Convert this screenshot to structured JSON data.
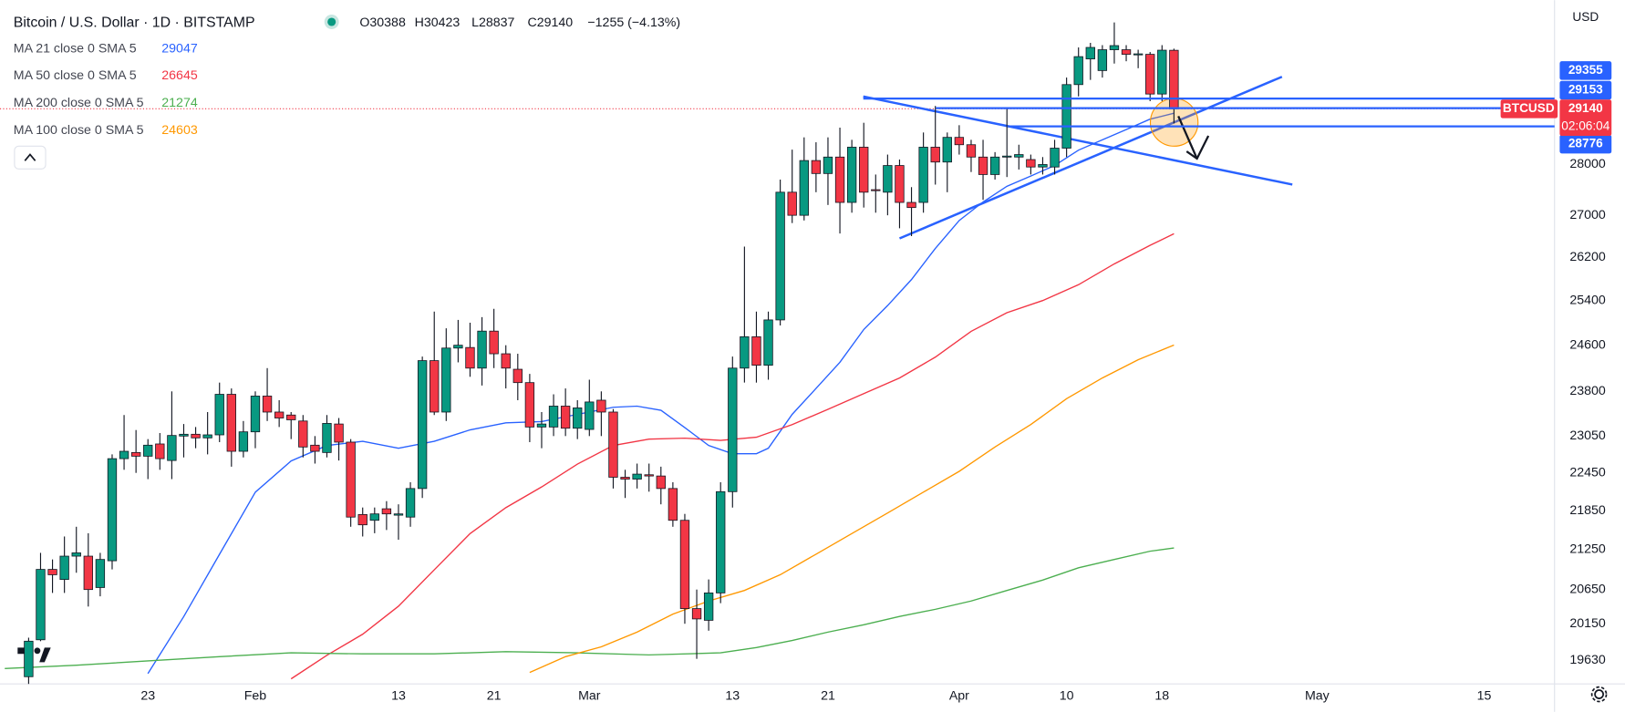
{
  "chart_data": {
    "type": "candlestick",
    "title": "Bitcoin / U.S. Dollar · 1D · BITSTAMP",
    "ohlc_labels": [
      "O30388",
      "H30423",
      "L28837",
      "C29140",
      "−1255 (−4.13%)"
    ],
    "currency": "USD",
    "up_color": "#089981",
    "down_color": "#f23645",
    "x": [
      13,
      14,
      15,
      16,
      17,
      18,
      19,
      20,
      21,
      22,
      23,
      24,
      25,
      26,
      27,
      28,
      29,
      30,
      31,
      32,
      33,
      34,
      35,
      36,
      37,
      38,
      39,
      40,
      41,
      42,
      43,
      44,
      45,
      46,
      47,
      48,
      49,
      50,
      51,
      52,
      53,
      54,
      55,
      56,
      57,
      58,
      59,
      60,
      61,
      62,
      63,
      64,
      65,
      66,
      67,
      68,
      69,
      70,
      71,
      72,
      73,
      74,
      75,
      76,
      77,
      78,
      79,
      80,
      81,
      82,
      83,
      84,
      85,
      86,
      87,
      88,
      89,
      90,
      91,
      92,
      93,
      94,
      95,
      96,
      97,
      98,
      99,
      100,
      101,
      102,
      103,
      104,
      105,
      106,
      107,
      108,
      109
    ],
    "open": [
      19400,
      19920,
      20950,
      20800,
      21150,
      21150,
      20680,
      21080,
      22680,
      22780,
      22720,
      22920,
      22650,
      23050,
      23080,
      23020,
      23070,
      23750,
      22800,
      23120,
      23720,
      23450,
      23400,
      23300,
      22900,
      22780,
      23250,
      22950,
      21790,
      21700,
      21880,
      21780,
      21750,
      22200,
      24330,
      23450,
      24550,
      24560,
      24200,
      24850,
      24450,
      24180,
      23950,
      23200,
      23200,
      23550,
      23180,
      23160,
      23650,
      23450,
      22380,
      22350,
      22420,
      22400,
      22200,
      21700,
      20370,
      20200,
      20600,
      22150,
      24200,
      24750,
      24250,
      25050,
      27450,
      27000,
      28080,
      27820,
      28150,
      27250,
      28350,
      27500,
      27450,
      27980,
      27250,
      27250,
      28350,
      28050,
      28550,
      28400,
      28150,
      27800,
      28150,
      28150,
      28100,
      27950,
      27950,
      28330,
      29650,
      30200,
      29950,
      30400,
      30400,
      30300,
      30300,
      29450,
      30388
    ],
    "high": [
      19950,
      21200,
      21100,
      21450,
      21600,
      21500,
      21200,
      22750,
      23400,
      23150,
      23000,
      23100,
      23800,
      23250,
      23200,
      23450,
      23950,
      23850,
      23300,
      23800,
      24200,
      23650,
      23450,
      23400,
      23050,
      23400,
      23350,
      23000,
      21900,
      21900,
      22000,
      21950,
      22300,
      24400,
      25200,
      24900,
      25050,
      25000,
      25100,
      25250,
      24600,
      24450,
      24100,
      23450,
      23750,
      23850,
      23650,
      24000,
      23800,
      23500,
      22500,
      22600,
      22600,
      22550,
      22300,
      21800,
      20650,
      20800,
      22300,
      24400,
      26400,
      25200,
      25200,
      27700,
      28300,
      28550,
      28450,
      28550,
      28750,
      28500,
      28850,
      27800,
      28200,
      28100,
      27550,
      28650,
      29200,
      28650,
      28800,
      28500,
      28500,
      28250,
      29150,
      28400,
      28200,
      28150,
      28500,
      29800,
      30450,
      30550,
      30500,
      31000,
      30500,
      30400,
      30350,
      30500,
      30423
    ],
    "low": [
      19300,
      19900,
      20600,
      20600,
      20900,
      20400,
      20550,
      20950,
      22500,
      22450,
      22350,
      22500,
      22350,
      22700,
      22850,
      22750,
      22950,
      22550,
      22700,
      22850,
      23300,
      23200,
      23000,
      22700,
      22600,
      22700,
      22650,
      21600,
      21450,
      21500,
      21550,
      21400,
      21600,
      22050,
      23400,
      23300,
      24300,
      24050,
      23900,
      24200,
      23850,
      23650,
      22950,
      22850,
      23050,
      23050,
      23000,
      23050,
      23050,
      22200,
      22050,
      22200,
      22150,
      21950,
      21600,
      20150,
      19650,
      20050,
      20450,
      21900,
      23950,
      23950,
      24000,
      24950,
      26850,
      26900,
      27450,
      27200,
      26650,
      27050,
      27150,
      27050,
      27000,
      26750,
      26600,
      27050,
      27600,
      27450,
      28200,
      27850,
      27300,
      27700,
      27750,
      27900,
      27800,
      27800,
      27800,
      28150,
      29400,
      29750,
      29800,
      30100,
      30150,
      30000,
      29300,
      29300,
      28837
    ],
    "close": [
      19900,
      20950,
      20870,
      21150,
      21200,
      20650,
      21100,
      22680,
      22800,
      22720,
      22900,
      22680,
      23060,
      23080,
      23020,
      23070,
      23750,
      22800,
      23120,
      23720,
      23450,
      23350,
      23320,
      22870,
      22800,
      23260,
      22950,
      21750,
      21630,
      21800,
      21800,
      21800,
      22200,
      24330,
      23450,
      24550,
      24600,
      24200,
      24850,
      24450,
      24200,
      23950,
      23200,
      23250,
      23550,
      23180,
      23520,
      23620,
      23450,
      22380,
      22350,
      22430,
      22400,
      22200,
      21700,
      20370,
      20220,
      20600,
      22150,
      24200,
      24750,
      24250,
      25050,
      27450,
      27000,
      28080,
      27820,
      28150,
      27250,
      28350,
      27450,
      27480,
      27980,
      27250,
      27150,
      28350,
      28050,
      28550,
      28400,
      28150,
      27800,
      28150,
      28170,
      28200,
      27950,
      28000,
      28330,
      29650,
      30250,
      30450,
      30400,
      30490,
      30300,
      30310,
      29450,
      30390,
      29140
    ],
    "indicators": [
      {
        "name": "MA 21 close 0 SMA 5",
        "color": "#2962ff",
        "x": [
          23,
          26,
          29,
          32,
          35,
          38,
          41,
          44,
          47,
          50,
          53,
          56,
          59,
          62,
          64,
          66,
          68,
          70,
          72,
          74,
          75,
          77,
          79,
          81,
          83,
          85,
          87,
          89,
          91,
          93,
          95,
          97,
          99,
          101,
          103,
          105,
          107,
          109
        ],
        "values": [
          19444,
          20254,
          21178,
          22143,
          22643,
          22895,
          22965,
          22850,
          22965,
          23153,
          23270,
          23290,
          23411,
          23530,
          23550,
          23480,
          23190,
          22895,
          22760,
          22760,
          22850,
          23411,
          23850,
          24300,
          24880,
          25310,
          25785,
          26365,
          26900,
          27260,
          27567,
          27770,
          27980,
          28290,
          28500,
          28710,
          28925,
          29047
        ]
      },
      {
        "name": "MA 50 close 0 SMA 5",
        "color": "#f23645",
        "x": [
          35,
          38,
          41,
          44,
          47,
          50,
          53,
          56,
          59,
          62,
          65,
          68,
          71,
          74,
          77,
          80,
          83,
          86,
          89,
          92,
          95,
          98,
          101,
          104,
          107,
          109
        ],
        "values": [
          19370,
          19700,
          20000,
          20405,
          20943,
          21495,
          21897,
          22225,
          22592,
          22895,
          23000,
          23016,
          22980,
          23030,
          23240,
          23495,
          23762,
          24030,
          24390,
          24845,
          25180,
          25400,
          25690,
          26075,
          26425,
          26645
        ]
      },
      {
        "name": "MA 200 close 0 SMA 5",
        "color": "#4caf50",
        "x": [
          11,
          17,
          23,
          29,
          35,
          41,
          47,
          53,
          59,
          65,
          71,
          74,
          77,
          80,
          83,
          86,
          89,
          92,
          95,
          98,
          101,
          104,
          107,
          109
        ],
        "values": [
          19515,
          19560,
          19620,
          19680,
          19735,
          19720,
          19720,
          19750,
          19735,
          19705,
          19735,
          19810,
          19910,
          20030,
          20135,
          20255,
          20360,
          20480,
          20636,
          20790,
          20975,
          21100,
          21225,
          21274
        ]
      },
      {
        "name": "MA 100 close 0 SMA 5",
        "color": "#ff9800",
        "x": [
          55,
          58,
          61,
          64,
          67,
          70,
          73,
          76,
          79,
          82,
          85,
          88,
          91,
          94,
          97,
          100,
          103,
          106,
          109
        ],
        "values": [
          19460,
          19680,
          19820,
          20030,
          20290,
          20481,
          20636,
          20870,
          21180,
          21495,
          21815,
          22143,
          22475,
          22870,
          23240,
          23675,
          24030,
          24345,
          24603
        ]
      }
    ],
    "price_lines": [
      29355,
      29153,
      28776
    ],
    "price_line_color": "#2962ff",
    "symbol": "BTCUSD",
    "countdown": "02:06:04",
    "log_scale": true,
    "grid": false,
    "ylim": [
      19300,
      31500
    ],
    "yticks": [
      28000,
      27000,
      26200,
      25400,
      24600,
      23800,
      23050,
      22450,
      21850,
      21250,
      20650,
      20150,
      19630
    ],
    "xlim": [
      10.6,
      140.9
    ],
    "xticks": [
      {
        "value": 23,
        "label": "23"
      },
      {
        "value": 32,
        "label": "Feb"
      },
      {
        "value": 44,
        "label": "13"
      },
      {
        "value": 52,
        "label": "21"
      },
      {
        "value": 60,
        "label": "Mar"
      },
      {
        "value": 72,
        "label": "13"
      },
      {
        "value": 80,
        "label": "21"
      },
      {
        "value": 91,
        "label": "Apr"
      },
      {
        "value": 100,
        "label": "10"
      },
      {
        "value": 108,
        "label": "18"
      },
      {
        "value": 121,
        "label": "May"
      },
      {
        "value": 135,
        "label": "15"
      }
    ]
  }
}
